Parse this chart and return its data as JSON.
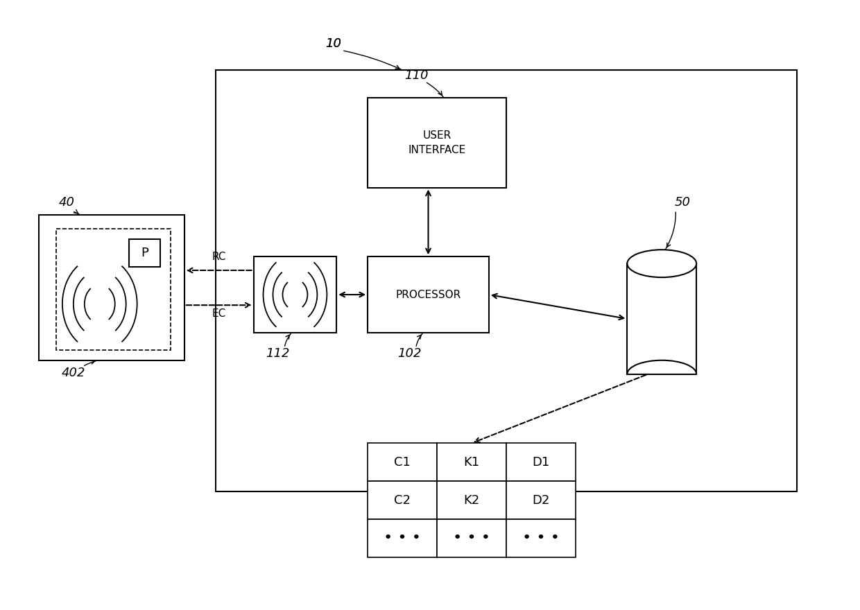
{
  "bg_color": "#ffffff",
  "line_color": "#000000",
  "fig_width": 12.4,
  "fig_height": 8.8,
  "table_rows": [
    [
      "C1",
      "K1",
      "D1"
    ],
    [
      "C2",
      "K2",
      "D2"
    ],
    [
      "• • •",
      "• • •",
      "• • •"
    ]
  ]
}
